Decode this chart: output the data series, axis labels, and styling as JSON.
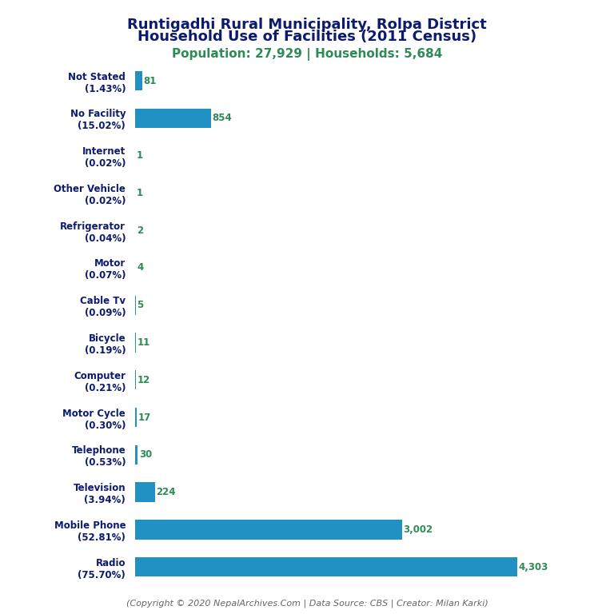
{
  "title_line1": "Runtigadhi Rural Municipality, Rolpa District",
  "title_line2": "Household Use of Facilities (2011 Census)",
  "subtitle": "Population: 27,929 | Households: 5,684",
  "footer": "(Copyright © 2020 NepalArchives.Com | Data Source: CBS | Creator: Milan Karki)",
  "categories": [
    "Not Stated\n(1.43%)",
    "No Facility\n(15.02%)",
    "Internet\n(0.02%)",
    "Other Vehicle\n(0.02%)",
    "Refrigerator\n(0.04%)",
    "Motor\n(0.07%)",
    "Cable Tv\n(0.09%)",
    "Bicycle\n(0.19%)",
    "Computer\n(0.21%)",
    "Motor Cycle\n(0.30%)",
    "Telephone\n(0.53%)",
    "Television\n(3.94%)",
    "Mobile Phone\n(52.81%)",
    "Radio\n(75.70%)"
  ],
  "values": [
    81,
    854,
    1,
    1,
    2,
    4,
    5,
    11,
    12,
    17,
    30,
    224,
    3002,
    4303
  ],
  "value_labels": [
    "81",
    "854",
    "1",
    "1",
    "2",
    "4",
    "5",
    "11",
    "12",
    "17",
    "30",
    "224",
    "3,002",
    "4,303"
  ],
  "bar_color": "#2191C4",
  "value_color": "#2E8B57",
  "title_color": "#0D1B6E",
  "subtitle_color": "#2E8B57",
  "label_color": "#0D1B6E",
  "footer_color": "#666666",
  "background_color": "#FFFFFF",
  "xlim": [
    0,
    4700
  ]
}
